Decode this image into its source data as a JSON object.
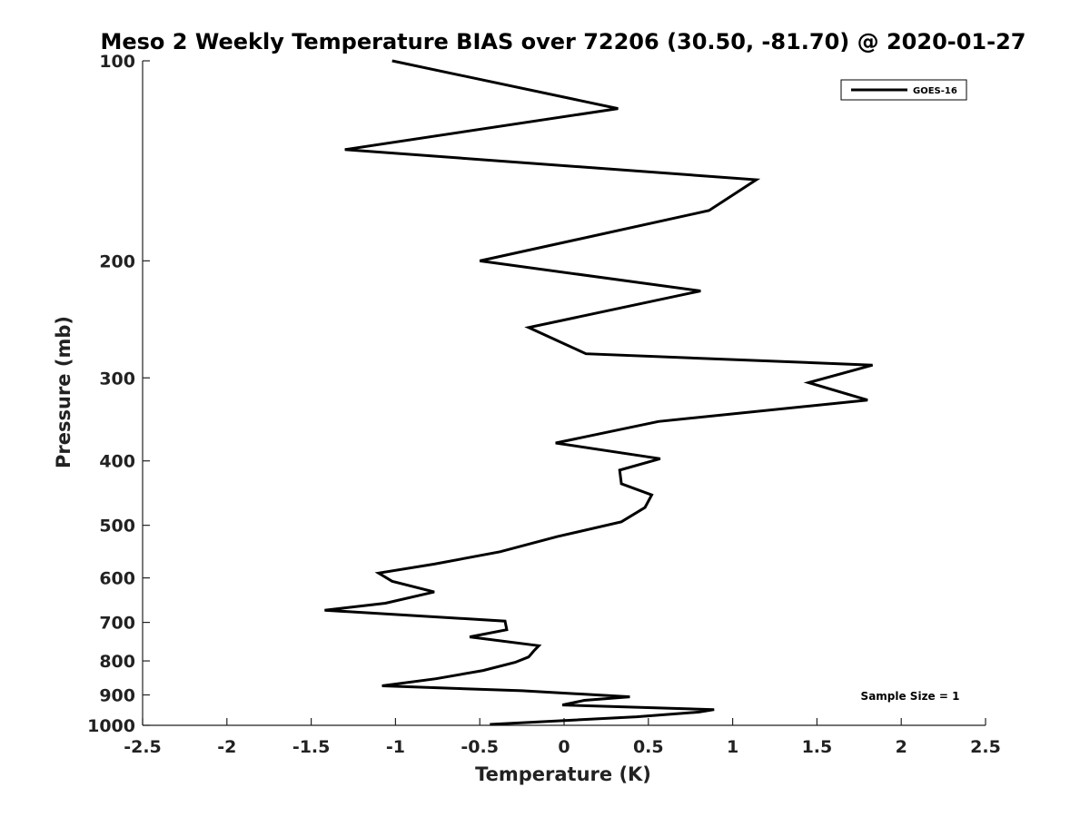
{
  "chart_data": {
    "type": "line",
    "title": "Meso 2 Weekly Temperature BIAS over 72206 (30.50, -81.70) @ 2020-01-27",
    "xlabel": "Temperature (K)",
    "ylabel": "Pressure (mb)",
    "xlim": [
      -2.5,
      2.5
    ],
    "ylim": [
      1000,
      100
    ],
    "y_scale": "log",
    "y_reversed": true,
    "grid": false,
    "legend_position": "top-right",
    "x_ticks": [
      -2.5,
      -2,
      -1.5,
      -1,
      -0.5,
      0,
      0.5,
      1,
      1.5,
      2,
      2.5
    ],
    "x_tick_labels": [
      "-2.5",
      "-2",
      "-1.5",
      "-1",
      "-0.5",
      "0",
      "0.5",
      "1",
      "1.5",
      "2",
      "2.5"
    ],
    "y_ticks": [
      100,
      200,
      300,
      400,
      500,
      600,
      700,
      800,
      900,
      1000
    ],
    "y_tick_labels": [
      "100",
      "200",
      "300",
      "400",
      "500",
      "600",
      "700",
      "800",
      "900",
      "1000"
    ],
    "series": [
      {
        "name": "GOES-16",
        "color": "#000000",
        "x": [
          -1.02,
          0.32,
          -1.3,
          1.14,
          0.86,
          -0.5,
          0.81,
          -0.21,
          0.13,
          1.83,
          1.45,
          1.8,
          0.56,
          -0.05,
          0.57,
          0.33,
          0.34,
          0.52,
          0.48,
          0.34,
          -0.04,
          -0.38,
          -0.77,
          -1.1,
          -1.02,
          -0.77,
          -1.06,
          -1.42,
          -0.35,
          -0.34,
          -0.56,
          -0.15,
          -0.18,
          -0.21,
          -0.29,
          -0.48,
          -0.76,
          -1.08,
          -0.25,
          0.39,
          0.12,
          -0.01,
          0.89,
          0.8,
          0.43,
          -0.44
        ],
        "y": [
          100,
          118,
          136,
          151,
          168,
          200,
          222,
          252,
          276,
          287,
          305,
          324,
          349,
          376,
          397,
          413,
          433,
          450,
          470,
          494,
          520,
          548,
          572,
          590,
          607,
          630,
          655,
          671,
          697,
          718,
          736,
          759,
          773,
          789,
          804,
          827,
          851,
          872,
          887,
          906,
          917,
          932,
          947,
          955,
          971,
          997
        ]
      }
    ],
    "annotations": [
      {
        "text": "Sample Size = 1",
        "x": 2.2,
        "y": 900
      }
    ]
  }
}
